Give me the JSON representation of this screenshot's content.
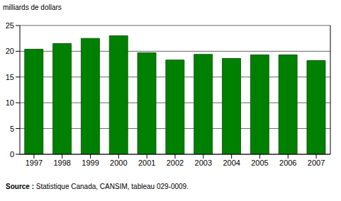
{
  "chart_data": {
    "type": "bar",
    "y_label": "milliards de dollars",
    "categories": [
      "1997",
      "1998",
      "1999",
      "2000",
      "2001",
      "2002",
      "2003",
      "2004",
      "2005",
      "2006",
      "2007"
    ],
    "values": [
      20.4,
      21.5,
      22.5,
      23.0,
      19.7,
      18.3,
      19.4,
      18.6,
      19.3,
      19.3,
      18.2
    ],
    "color": "#008000",
    "ylim": [
      0,
      25
    ],
    "yticks": [
      0,
      5,
      10,
      15,
      20,
      25
    ],
    "grid": true,
    "annotations": [
      "Source : Statistique Canada, CANSIM, tableau 029-0009."
    ]
  }
}
